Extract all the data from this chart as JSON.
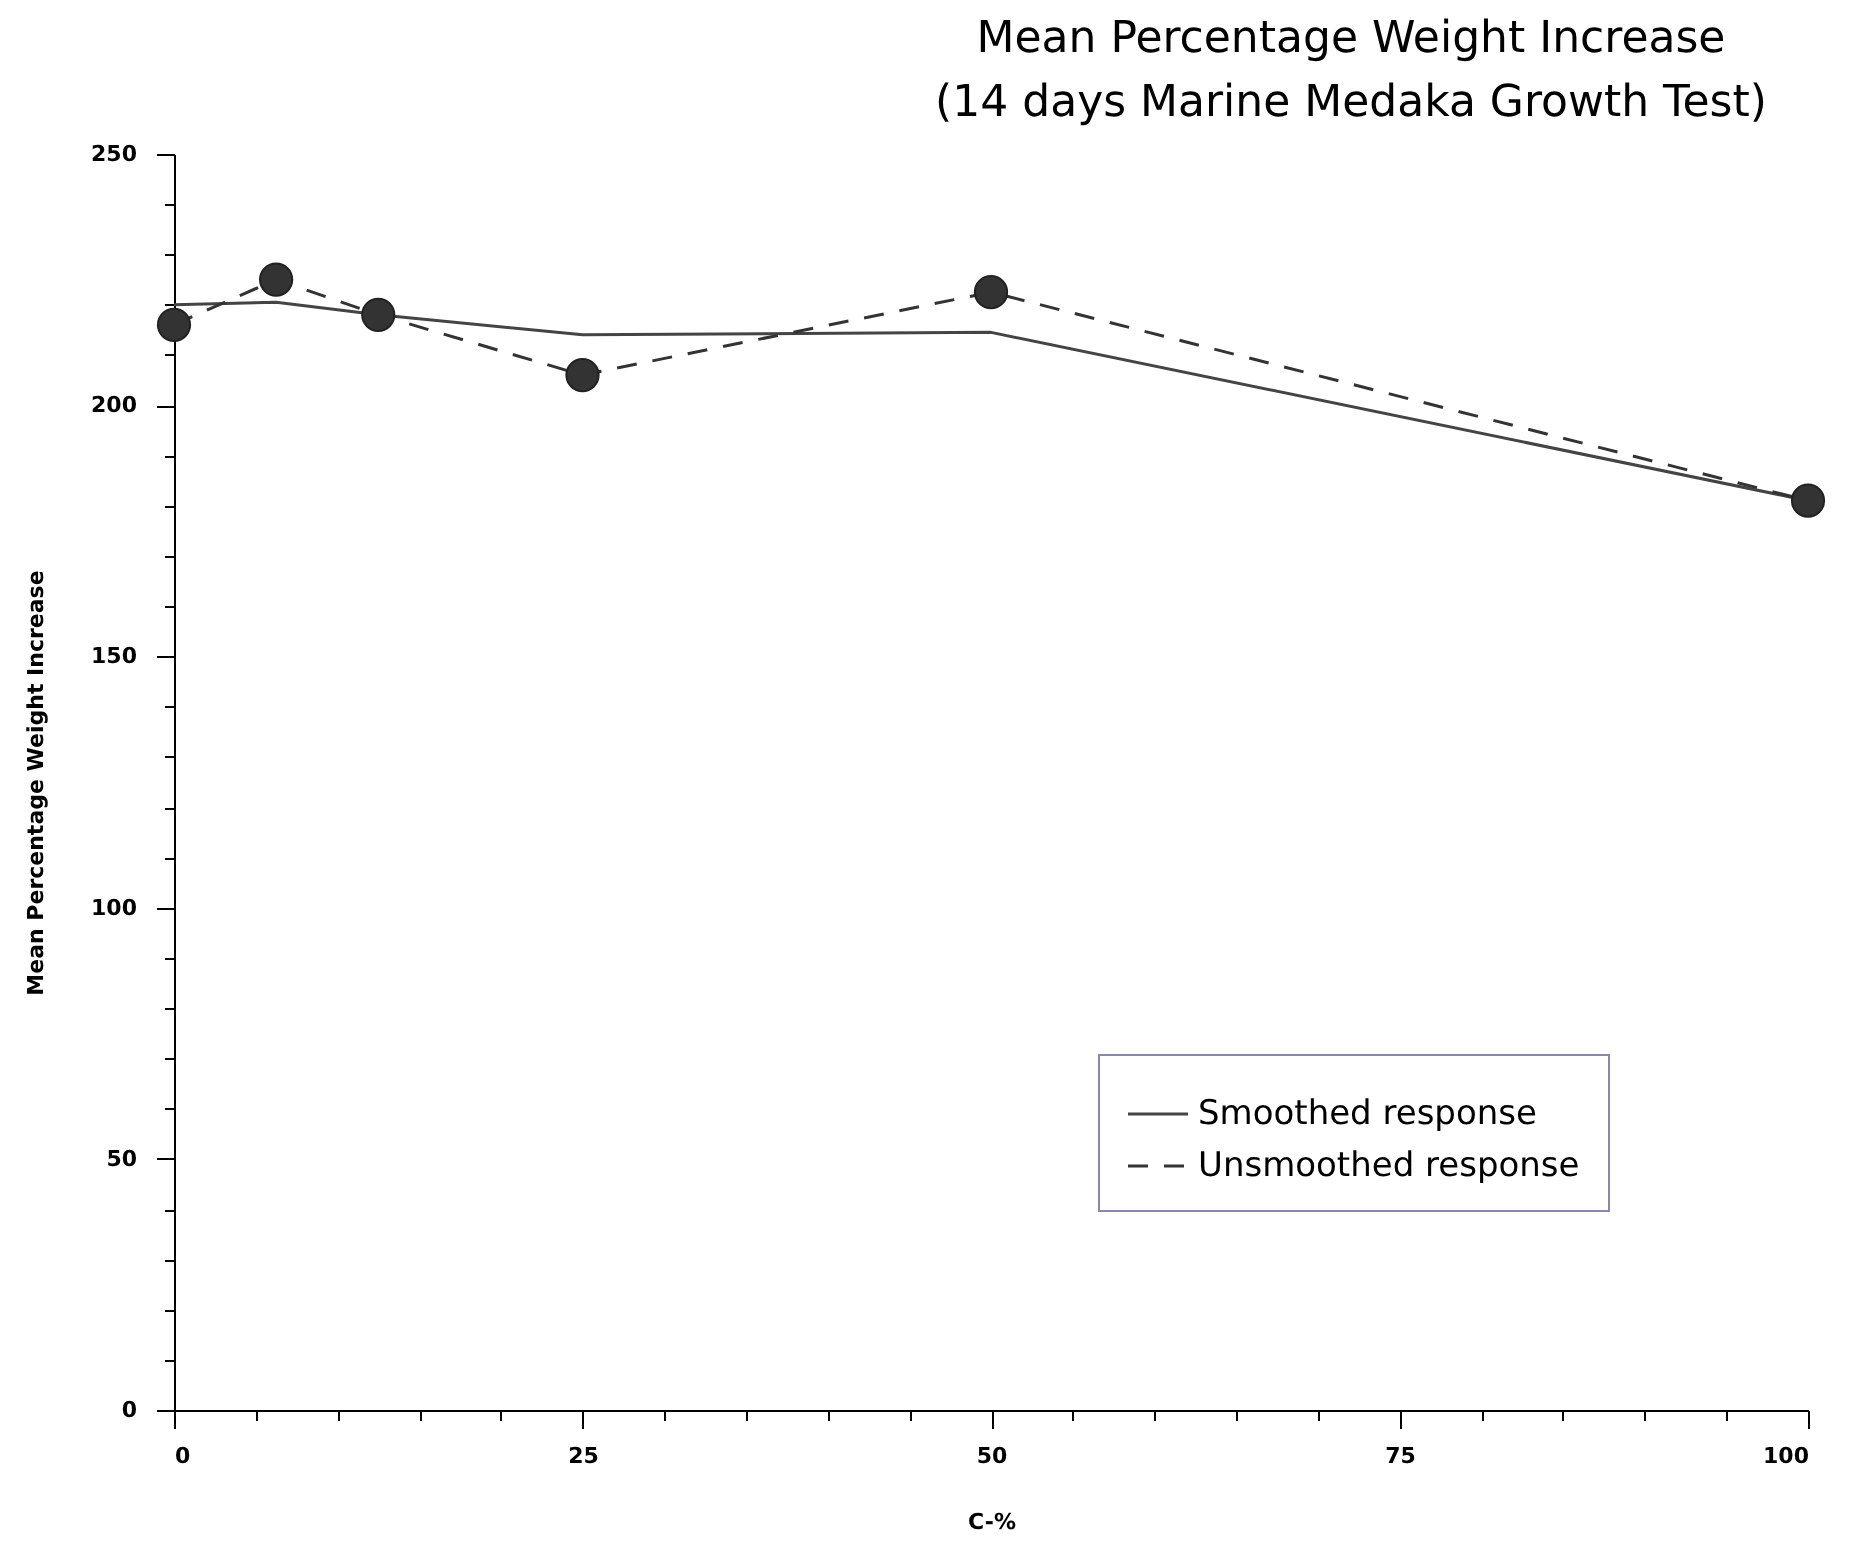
{
  "chart_data": {
    "type": "line",
    "title": "Mean Percentage Weight Increase",
    "subtitle": "(14 days Marine Medaka Growth Test)",
    "xlabel": "C-%",
    "ylabel": "Mean Percentage Weight Increase",
    "x": [
      0,
      6.25,
      12.5,
      25,
      50,
      100
    ],
    "series": [
      {
        "name": "Smoothed response",
        "color": "#444444",
        "values": [
          220,
          220.5,
          218,
          214,
          214.5,
          181
        ],
        "marker": "none",
        "line_style": "solid"
      },
      {
        "name": "Unsmoothed response",
        "color": "#333333",
        "values": [
          216,
          225,
          218,
          206,
          222.5,
          181
        ],
        "marker": "circle",
        "line_style": "dashed"
      }
    ],
    "xlim": [
      0,
      100
    ],
    "xticks": [
      0,
      {
        "value": 5,
        "label": null
      },
      {
        "value": 10,
        "label": null
      },
      {
        "value": 15,
        "label": null
      },
      {
        "value": 20,
        "label": null
      },
      25,
      {
        "value": 30,
        "label": null
      },
      {
        "value": 35,
        "label": null
      },
      {
        "value": 40,
        "label": null
      },
      {
        "value": 45,
        "label": null
      },
      50,
      {
        "value": 55,
        "label": null
      },
      {
        "value": 60,
        "label": null
      },
      {
        "value": 65,
        "label": null
      },
      {
        "value": 70,
        "label": null
      },
      75,
      {
        "value": 80,
        "label": null
      },
      {
        "value": 85,
        "label": null
      },
      {
        "value": 90,
        "label": null
      },
      {
        "value": 95,
        "label": null
      },
      100
    ],
    "ylim": [
      0,
      250
    ],
    "yticks": [
      0,
      {
        "value": 10,
        "label": null
      },
      {
        "value": 20,
        "label": null
      },
      {
        "value": 30,
        "label": null
      },
      {
        "value": 40,
        "label": null
      },
      50,
      {
        "value": 60,
        "label": null
      },
      {
        "value": 70,
        "label": null
      },
      {
        "value": 80,
        "label": null
      },
      {
        "value": 90,
        "label": null
      },
      100,
      {
        "value": 110,
        "label": null
      },
      {
        "value": 120,
        "label": null
      },
      {
        "value": 130,
        "label": null
      },
      {
        "value": 140,
        "label": null
      },
      150,
      {
        "value": 160,
        "label": null
      },
      {
        "value": 170,
        "label": null
      },
      {
        "value": 180,
        "label": null
      },
      {
        "value": 190,
        "label": null
      },
      200,
      {
        "value": 210,
        "label": null
      },
      {
        "value": 220,
        "label": null
      },
      {
        "value": 230,
        "label": null
      },
      {
        "value": 240,
        "label": null
      },
      250
    ],
    "grid": false,
    "legend": "bottom right"
  }
}
